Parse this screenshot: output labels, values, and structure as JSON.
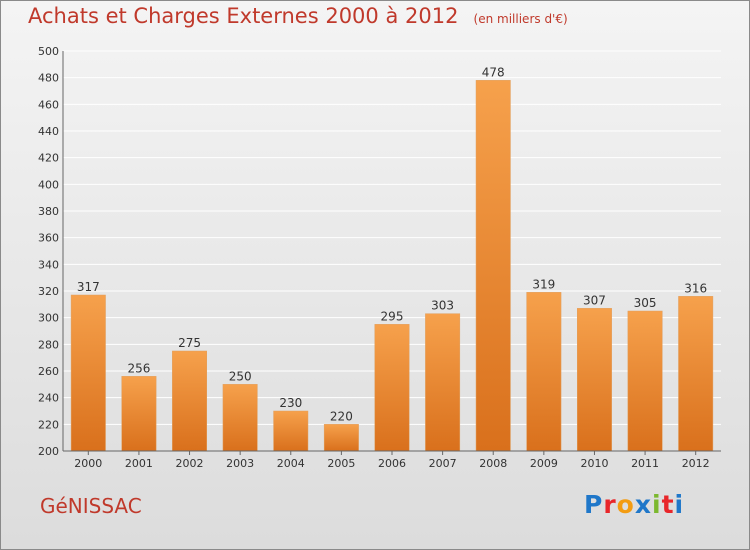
{
  "title": "Achats et Charges Externes 2000 à 2012",
  "unit": "(en milliers d'€)",
  "town": "GéNISSAC",
  "logo": {
    "letters": [
      "P",
      "r",
      "o",
      "x",
      "i",
      "t",
      "i"
    ],
    "colors": [
      "#1f77c9",
      "#e8262a",
      "#f39c12",
      "#1f77c9",
      "#7cb82f",
      "#e8262a",
      "#1f77c9"
    ]
  },
  "colors": {
    "bar": "#f0882f",
    "bar_dark": "#d9701c",
    "title": "#c0392b",
    "grid": "#ffffff",
    "axis": "#666666"
  },
  "chart_data": {
    "type": "bar",
    "categories": [
      "2000",
      "2001",
      "2002",
      "2003",
      "2004",
      "2005",
      "2006",
      "2007",
      "2008",
      "2009",
      "2010",
      "2011",
      "2012"
    ],
    "values": [
      317,
      256,
      275,
      250,
      230,
      220,
      295,
      303,
      478,
      319,
      307,
      305,
      316
    ],
    "ylim": [
      200,
      500
    ],
    "yticks": [
      200,
      220,
      240,
      260,
      280,
      300,
      320,
      340,
      360,
      380,
      400,
      420,
      440,
      460,
      480,
      500
    ],
    "grid": true,
    "data_labels": true
  }
}
